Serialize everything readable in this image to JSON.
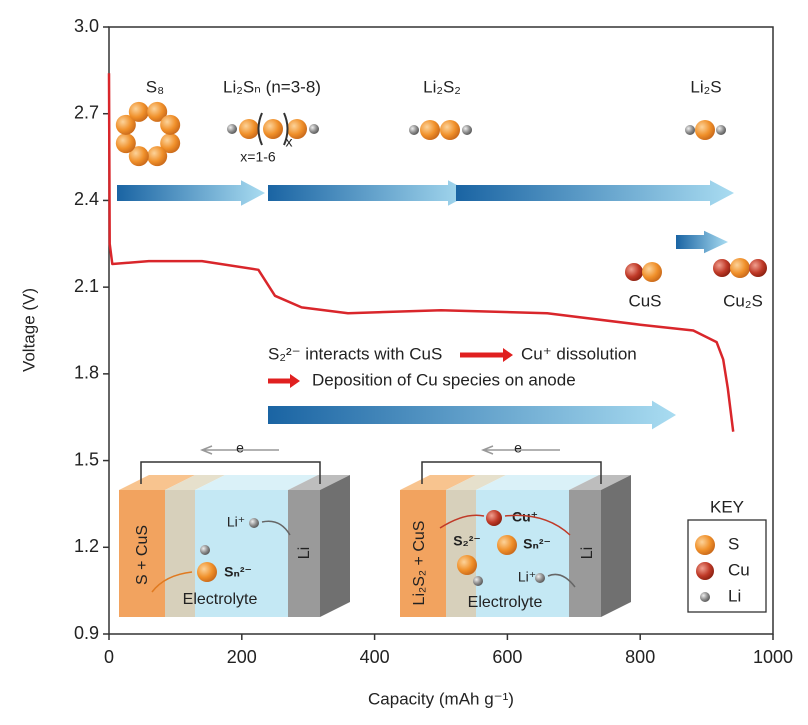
{
  "chart_data": {
    "type": "line",
    "xlabel": "Capacity (mAh g⁻¹)",
    "ylabel": "Voltage (V)",
    "x": [
      0,
      1,
      5,
      60,
      140,
      225,
      250,
      290,
      360,
      500,
      660,
      800,
      880,
      915,
      925,
      932,
      940
    ],
    "values": [
      2.84,
      2.25,
      2.18,
      2.19,
      2.19,
      2.16,
      2.07,
      2.03,
      2.01,
      2.02,
      2.01,
      1.97,
      1.95,
      1.91,
      1.85,
      1.75,
      1.6
    ],
    "color": "#d9262b",
    "xlim": [
      0,
      1000
    ],
    "ylim": [
      0.9,
      3.0
    ],
    "xticks": [
      0,
      200,
      400,
      600,
      800,
      1000
    ],
    "yticks": [
      {
        "value": 3,
        "label": "3.0"
      },
      2.7,
      2.4,
      2.1,
      1.8,
      1.5,
      1.2,
      0.9
    ],
    "annotations": [
      "S₈",
      "Li₂Sₙ (n=3-8)",
      "Li₂S₂",
      "Li₂S",
      "x=1-6",
      "CuS",
      "Cu₂S",
      "S₂²⁻ interacts with CuS",
      "Cu⁺ dissolution",
      "Deposition of Cu species on anode",
      "e",
      "Li⁺",
      "S + CuS",
      "Sₙ²⁻",
      "Electrolyte",
      "Li",
      "e",
      "Cu⁺",
      "Li₂S₂ + CuS",
      "S₂²⁻",
      "Sₙ²⁻",
      "Li⁺",
      "Electrolyte",
      "Li",
      "x"
    ],
    "key": {
      "title": "KEY",
      "items": [
        "S",
        "Cu",
        "Li"
      ]
    }
  }
}
